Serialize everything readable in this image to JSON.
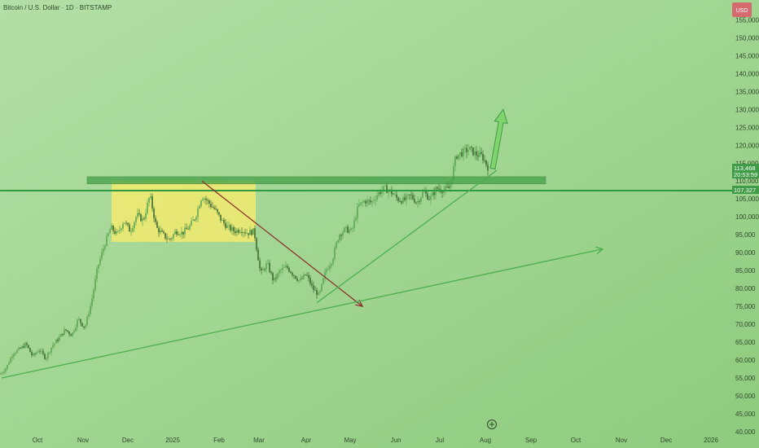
{
  "chart_data": {
    "type": "candlestick",
    "title": "Bitcoin / U.S. Dollar · 1D · BITSTAMP",
    "currency": "USD",
    "y_ticks": [
      155000,
      150000,
      145000,
      140000,
      135000,
      130000,
      125000,
      120000,
      115000,
      110000,
      105000,
      100000,
      95000,
      90000,
      85000,
      80000,
      75000,
      70000,
      65000,
      60000,
      55000,
      50000,
      45000,
      40000
    ],
    "y_tick_labels": [
      "155,000",
      "150,000",
      "145,000",
      "140,000",
      "135,000",
      "130,000",
      "125,000",
      "120,000",
      "115,000",
      "110,000",
      "105,000",
      "100,000",
      "95,000",
      "90,000",
      "85,000",
      "80,000",
      "75,000",
      "70,000",
      "65,000",
      "60,000",
      "55,000",
      "50,000",
      "45,000",
      "40,000"
    ],
    "x_ticks": [
      "Oct",
      "Nov",
      "Dec",
      "2025",
      "Feb",
      "Mar",
      "Apr",
      "May",
      "Jun",
      "Jul",
      "Aug",
      "Sep",
      "Oct",
      "Nov",
      "Dec",
      "2026"
    ],
    "ylim": [
      40000,
      156000
    ],
    "current_price": "113,468",
    "countdown": "20:53:59",
    "level_line": "107,327",
    "price_path": [
      [
        0,
        56000
      ],
      [
        8,
        58000
      ],
      [
        16,
        62000
      ],
      [
        24,
        63000
      ],
      [
        32,
        64500
      ],
      [
        40,
        61000
      ],
      [
        48,
        63000
      ],
      [
        56,
        60500
      ],
      [
        64,
        64000
      ],
      [
        72,
        66000
      ],
      [
        80,
        68500
      ],
      [
        88,
        67000
      ],
      [
        96,
        71500
      ],
      [
        104,
        69000
      ],
      [
        112,
        76000
      ],
      [
        120,
        86000
      ],
      [
        128,
        92000
      ],
      [
        136,
        97000
      ],
      [
        144,
        95000
      ],
      [
        152,
        99000
      ],
      [
        160,
        96000
      ],
      [
        168,
        100500
      ],
      [
        176,
        99000
      ],
      [
        184,
        106000
      ],
      [
        192,
        97000
      ],
      [
        200,
        95000
      ],
      [
        208,
        93500
      ],
      [
        216,
        96000
      ],
      [
        224,
        95500
      ],
      [
        232,
        97000
      ],
      [
        240,
        100000
      ],
      [
        248,
        106000
      ],
      [
        256,
        104000
      ],
      [
        264,
        102000
      ],
      [
        272,
        99000
      ],
      [
        280,
        97000
      ],
      [
        288,
        96000
      ],
      [
        296,
        96500
      ],
      [
        304,
        95500
      ],
      [
        312,
        96000
      ],
      [
        320,
        84000
      ],
      [
        328,
        87000
      ],
      [
        336,
        82000
      ],
      [
        344,
        85000
      ],
      [
        352,
        86000
      ],
      [
        360,
        84000
      ],
      [
        368,
        82000
      ],
      [
        376,
        84000
      ],
      [
        384,
        80000
      ],
      [
        392,
        78000
      ],
      [
        400,
        85000
      ],
      [
        408,
        88000
      ],
      [
        416,
        95000
      ],
      [
        424,
        96500
      ],
      [
        432,
        96000
      ],
      [
        440,
        103000
      ],
      [
        448,
        104500
      ],
      [
        456,
        104000
      ],
      [
        464,
        106500
      ],
      [
        472,
        108000
      ],
      [
        480,
        107000
      ],
      [
        488,
        105000
      ],
      [
        496,
        104500
      ],
      [
        504,
        106000
      ],
      [
        512,
        104000
      ],
      [
        520,
        107000
      ],
      [
        528,
        105000
      ],
      [
        536,
        108000
      ],
      [
        544,
        107500
      ],
      [
        552,
        108000
      ],
      [
        560,
        117000
      ],
      [
        568,
        118000
      ],
      [
        576,
        119000
      ],
      [
        584,
        117500
      ],
      [
        592,
        117000
      ],
      [
        600,
        113468
      ]
    ],
    "annotations": [
      {
        "kind": "resistance-zone",
        "from_x": 107,
        "to_x": 670,
        "y_top": 111200,
        "y_bottom": 109200
      },
      {
        "kind": "consolidation-box",
        "from_x": 137,
        "to_x": 314,
        "y_top": 110000,
        "y_bottom": 93000
      },
      {
        "kind": "horizontal-level",
        "y": 107327
      },
      {
        "kind": "descending-trend-arrow",
        "from": [
          248,
          110000
        ],
        "to": [
          445,
          75000
        ]
      },
      {
        "kind": "ascending-trendline",
        "from": [
          389,
          76000
        ],
        "to": [
          610,
          113000
        ]
      },
      {
        "kind": "long-term-trendline",
        "from": [
          2,
          55000
        ],
        "to": [
          740,
          91000
        ]
      },
      {
        "kind": "projection-arrow",
        "from": [
          605,
          113468
        ],
        "to": [
          618,
          130000
        ]
      }
    ],
    "colors": {
      "background": "#9fd28f",
      "up_candle": "#5ea752",
      "down_candle": "#3e6c33",
      "trendline": "#4caf50",
      "zone": "#43a047",
      "box": "#f2ea70",
      "down_arrow": "#8b2a28",
      "usd_badge": "#d66b6f"
    },
    "grid": false,
    "legend": "none"
  }
}
